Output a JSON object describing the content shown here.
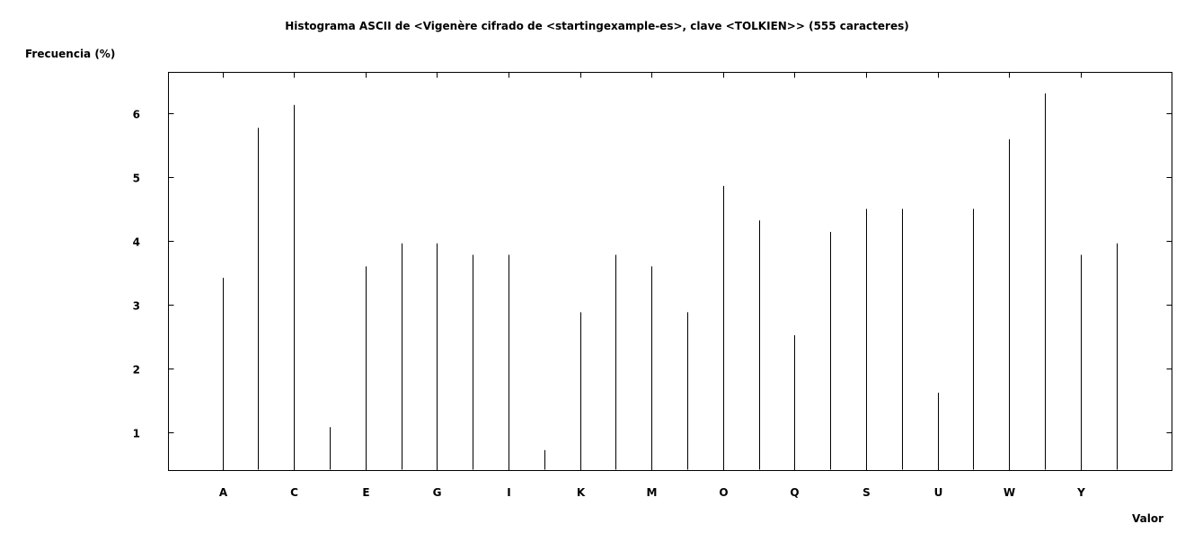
{
  "chart_data": {
    "type": "bar",
    "title": "Histograma ASCII de <Vigenère cifrado de <startingexample-es>, clave <TOLKIEN>> (555 caracteres)",
    "ylabel": "Frecuencia (%)",
    "xlabel": "Valor",
    "categories": [
      "A",
      "B",
      "C",
      "D",
      "E",
      "F",
      "G",
      "H",
      "I",
      "J",
      "K",
      "L",
      "M",
      "N",
      "O",
      "P",
      "Q",
      "R",
      "S",
      "T",
      "U",
      "V",
      "W",
      "X",
      "Y",
      "Z"
    ],
    "x_tick_labels": [
      "A",
      "C",
      "E",
      "G",
      "I",
      "K",
      "M",
      "O",
      "Q",
      "S",
      "U",
      "W",
      "Y"
    ],
    "y_ticks": [
      1,
      2,
      3,
      4,
      5,
      6
    ],
    "values": [
      3.42,
      5.77,
      6.13,
      1.08,
      3.6,
      3.96,
      3.96,
      3.78,
      3.78,
      0.72,
      2.88,
      3.78,
      3.6,
      2.88,
      4.86,
      4.32,
      2.52,
      4.14,
      4.5,
      4.5,
      1.62,
      4.5,
      5.59,
      6.31,
      3.78,
      3.96
    ],
    "ylim": [
      0.4,
      6.64
    ],
    "grid": false,
    "legend": "none"
  }
}
